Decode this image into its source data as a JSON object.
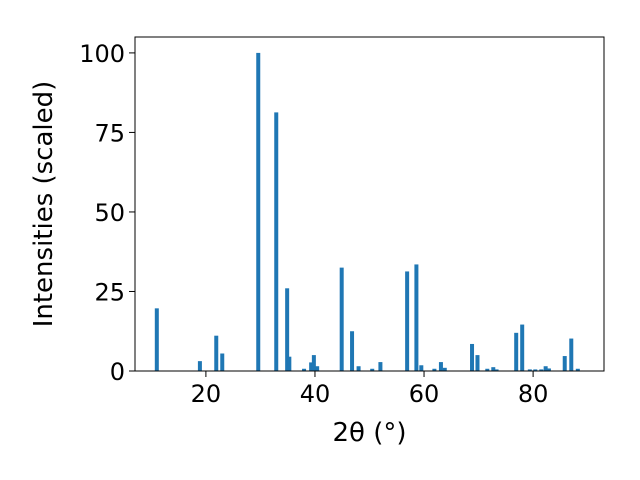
{
  "chart_data": {
    "type": "bar",
    "xlabel": "2θ (°)",
    "ylabel": "Intensities (scaled)",
    "xlim": [
      7,
      93
    ],
    "ylim": [
      0,
      105
    ],
    "xticks": [
      20,
      40,
      60,
      80
    ],
    "yticks": [
      0,
      25,
      50,
      75,
      100
    ],
    "bar_color": "#1f77b4",
    "grid": false,
    "x": [
      11.0,
      18.9,
      21.9,
      23.0,
      29.6,
      32.9,
      34.9,
      35.3,
      38.0,
      39.3,
      39.8,
      40.4,
      44.9,
      46.8,
      48.0,
      50.5,
      52.0,
      56.9,
      58.6,
      59.5,
      61.9,
      63.1,
      63.8,
      68.8,
      69.8,
      71.6,
      72.7,
      73.3,
      76.9,
      78.0,
      79.4,
      80.4,
      81.5,
      82.3,
      82.9,
      85.8,
      87.0,
      88.2
    ],
    "values": [
      19.7,
      3.1,
      11.1,
      5.5,
      100.0,
      81.3,
      26.0,
      4.5,
      0.7,
      2.7,
      5.0,
      1.5,
      32.5,
      12.5,
      1.5,
      0.7,
      2.8,
      31.3,
      33.5,
      1.8,
      0.7,
      2.8,
      1.0,
      8.5,
      5.0,
      0.7,
      1.2,
      0.5,
      12.0,
      14.6,
      0.5,
      0.5,
      0.5,
      1.5,
      0.8,
      4.7,
      10.2,
      0.7
    ]
  }
}
